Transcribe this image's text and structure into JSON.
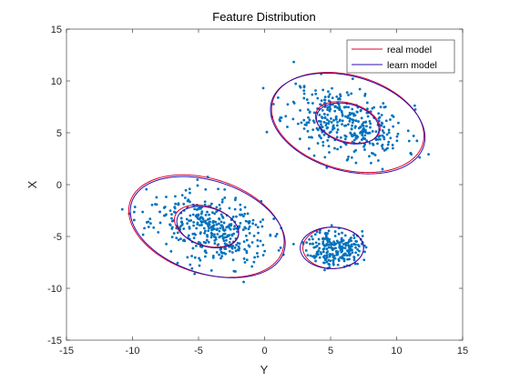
{
  "chart_data": {
    "type": "scatter",
    "title": "Feature Distribution",
    "xlabel": "Y",
    "ylabel": "X",
    "xlim": [
      -15,
      15
    ],
    "ylim": [
      -15,
      15
    ],
    "xticks": [
      -15,
      -10,
      -5,
      0,
      5,
      10,
      15
    ],
    "yticks": [
      -15,
      -10,
      -5,
      0,
      5,
      10,
      15
    ],
    "grid": false,
    "legend_position": "top-right",
    "points_color": "#0072BD",
    "clusters": [
      {
        "center": [
          6.2,
          6.0
        ],
        "cov": [
          [
            5.0,
            -1.5
          ],
          [
            -1.5,
            3.0
          ]
        ],
        "n": 380,
        "seed": 11
      },
      {
        "center": [
          -4.2,
          -4.2
        ],
        "cov": [
          [
            5.0,
            -1.5
          ],
          [
            -1.5,
            3.0
          ]
        ],
        "n": 400,
        "seed": 23
      },
      {
        "center": [
          5.3,
          -6.1
        ],
        "cov": [
          [
            1.0,
            0.0
          ],
          [
            0.0,
            0.8
          ]
        ],
        "n": 240,
        "seed": 37
      }
    ],
    "series": [
      {
        "name": "real model",
        "color": "#E0002A",
        "ellipses": [
          {
            "center": [
              6.3,
              6.0
            ],
            "a": 6.1,
            "b": 4.4,
            "angle_deg": -28
          },
          {
            "center": [
              6.3,
              6.0
            ],
            "a": 2.6,
            "b": 1.8,
            "angle_deg": -28
          },
          {
            "center": [
              -4.4,
              -4.0
            ],
            "a": 6.3,
            "b": 4.4,
            "angle_deg": -30
          },
          {
            "center": [
              -4.4,
              -4.0
            ],
            "a": 2.6,
            "b": 1.8,
            "angle_deg": -30
          },
          {
            "center": [
              5.2,
              -6.1
            ],
            "a": 2.3,
            "b": 2.0,
            "angle_deg": 0
          }
        ]
      },
      {
        "name": "learn model",
        "color": "#2A0FB0",
        "ellipses": [
          {
            "center": [
              6.3,
              5.9
            ],
            "a": 6.2,
            "b": 4.4,
            "angle_deg": -28
          },
          {
            "center": [
              6.3,
              5.9
            ],
            "a": 2.5,
            "b": 1.8,
            "angle_deg": -28
          },
          {
            "center": [
              -4.3,
              -4.1
            ],
            "a": 6.3,
            "b": 4.3,
            "angle_deg": -30
          },
          {
            "center": [
              -4.3,
              -4.1
            ],
            "a": 2.5,
            "b": 1.8,
            "angle_deg": -30
          },
          {
            "center": [
              5.1,
              -6.1
            ],
            "a": 2.4,
            "b": 2.0,
            "angle_deg": 0
          }
        ]
      }
    ]
  }
}
